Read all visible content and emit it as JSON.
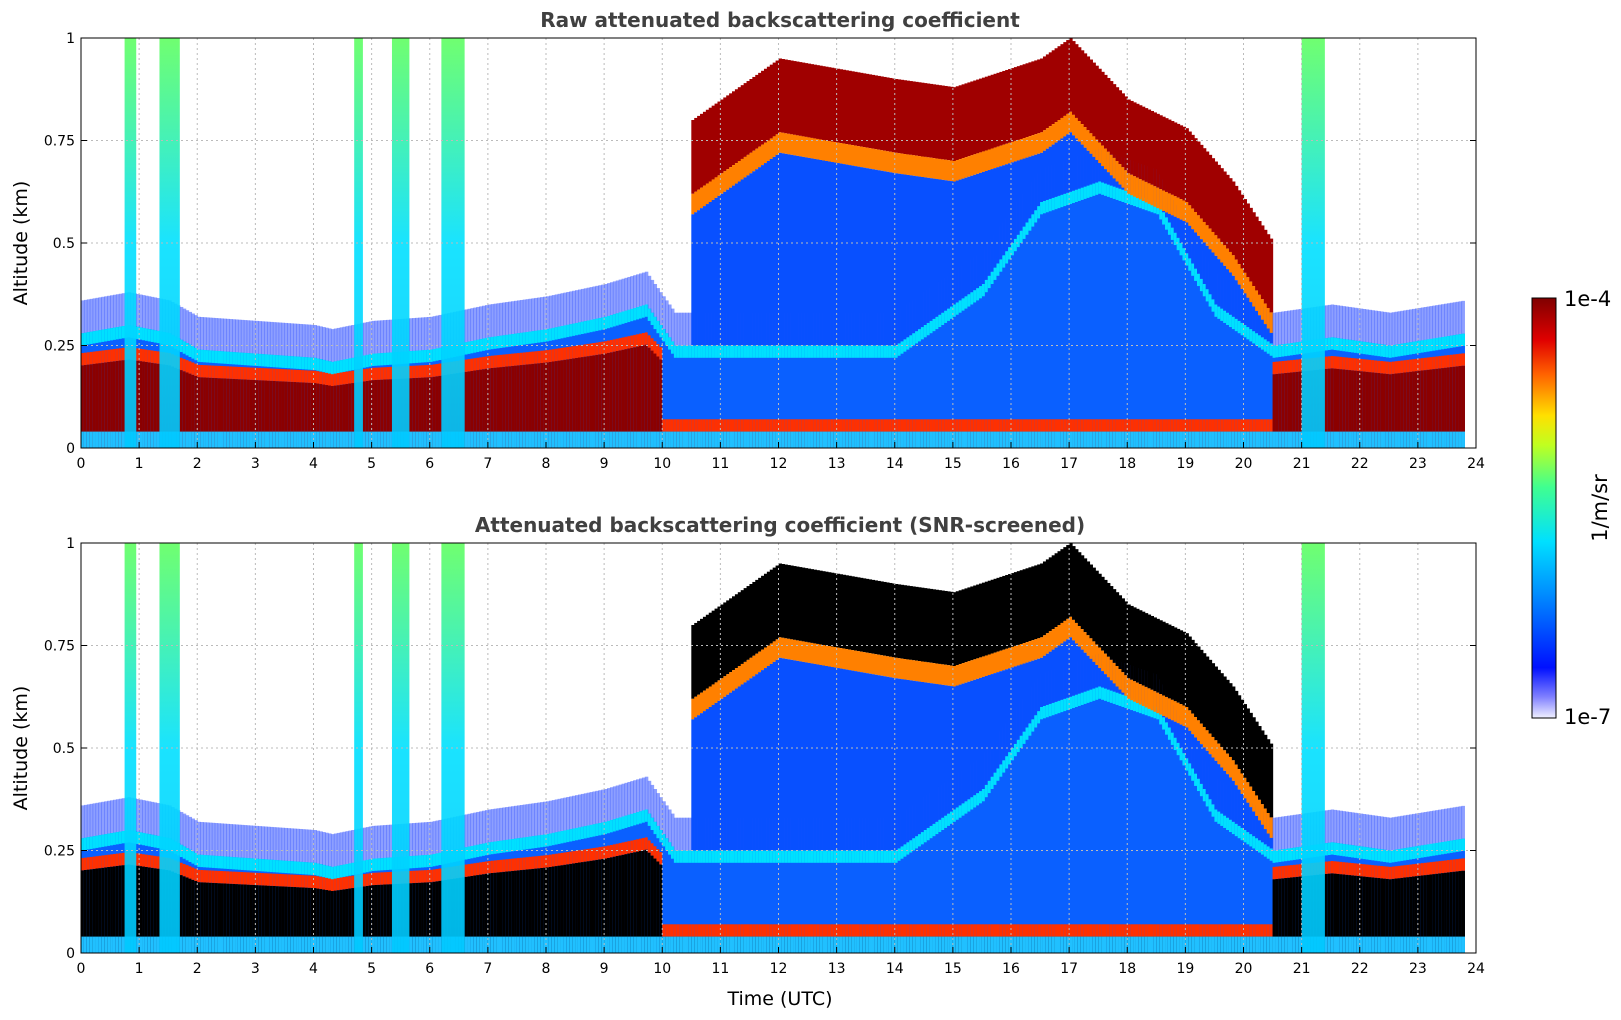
{
  "chart_data": [
    {
      "type": "heatmap",
      "title": "Raw attenuated backscattering coefficient",
      "xlabel": "",
      "ylabel": "Altitude (km)",
      "xlim": [
        0,
        24
      ],
      "ylim": [
        0,
        1
      ],
      "xticks": [
        "0",
        "1",
        "2",
        "3",
        "4",
        "5",
        "6",
        "7",
        "8",
        "9",
        "10",
        "11",
        "12",
        "13",
        "14",
        "15",
        "16",
        "17",
        "18",
        "19",
        "20",
        "21",
        "22",
        "23",
        "24"
      ],
      "yticks": [
        "0",
        "0.25",
        "0.5",
        "0.75",
        "1"
      ],
      "grid": true,
      "layer_top_km": [
        [
          0,
          0.28
        ],
        [
          0.8,
          0.3
        ],
        [
          1.5,
          0.28
        ],
        [
          2,
          0.24
        ],
        [
          3,
          0.23
        ],
        [
          4,
          0.22
        ],
        [
          4.3,
          0.21
        ],
        [
          5,
          0.23
        ],
        [
          6,
          0.24
        ],
        [
          7,
          0.27
        ],
        [
          8,
          0.29
        ],
        [
          9,
          0.32
        ],
        [
          9.7,
          0.35
        ],
        [
          10.2,
          0.25
        ],
        [
          12,
          0.25
        ],
        [
          14,
          0.25
        ],
        [
          15.5,
          0.4
        ],
        [
          16.5,
          0.6
        ],
        [
          17.5,
          0.65
        ],
        [
          18.5,
          0.6
        ],
        [
          19.5,
          0.35
        ],
        [
          20.5,
          0.25
        ],
        [
          21.5,
          0.27
        ],
        [
          22.5,
          0.25
        ],
        [
          23.8,
          0.28
        ]
      ],
      "cloud_top_km": [
        [
          10.5,
          0.8
        ],
        [
          12,
          0.95
        ],
        [
          14,
          0.9
        ],
        [
          15,
          0.88
        ],
        [
          16.5,
          0.95
        ],
        [
          17,
          1.0
        ],
        [
          18,
          0.85
        ],
        [
          19,
          0.78
        ],
        [
          19.8,
          0.65
        ],
        [
          20.5,
          0.5
        ]
      ]
    },
    {
      "type": "heatmap",
      "title": "Attenuated backscattering coefficient (SNR-screened)",
      "xlabel": "Time (UTC)",
      "ylabel": "Altitude (km)",
      "xlim": [
        0,
        24
      ],
      "ylim": [
        0,
        1
      ],
      "xticks": [
        "0",
        "1",
        "2",
        "3",
        "4",
        "5",
        "6",
        "7",
        "8",
        "9",
        "10",
        "11",
        "12",
        "13",
        "14",
        "15",
        "16",
        "17",
        "18",
        "19",
        "20",
        "21",
        "22",
        "23",
        "24"
      ],
      "yticks": [
        "0",
        "0.25",
        "0.5",
        "0.75",
        "1"
      ],
      "grid": true,
      "layer_top_km": [
        [
          0,
          0.28
        ],
        [
          0.8,
          0.3
        ],
        [
          1.5,
          0.28
        ],
        [
          2,
          0.24
        ],
        [
          3,
          0.23
        ],
        [
          4,
          0.22
        ],
        [
          4.3,
          0.21
        ],
        [
          5,
          0.23
        ],
        [
          6,
          0.24
        ],
        [
          7,
          0.27
        ],
        [
          8,
          0.29
        ],
        [
          9,
          0.32
        ],
        [
          9.7,
          0.35
        ],
        [
          10.2,
          0.25
        ],
        [
          12,
          0.25
        ],
        [
          14,
          0.25
        ],
        [
          15.5,
          0.4
        ],
        [
          16.5,
          0.6
        ],
        [
          17.5,
          0.65
        ],
        [
          18.5,
          0.6
        ],
        [
          19.5,
          0.35
        ],
        [
          20.5,
          0.25
        ],
        [
          21.5,
          0.27
        ],
        [
          22.5,
          0.25
        ],
        [
          23.8,
          0.28
        ]
      ],
      "cloud_top_km": [
        [
          10.5,
          0.8
        ],
        [
          12,
          0.95
        ],
        [
          14,
          0.9
        ],
        [
          15,
          0.88
        ],
        [
          16.5,
          0.95
        ],
        [
          17,
          1.0
        ],
        [
          18,
          0.85
        ],
        [
          19,
          0.78
        ],
        [
          19.8,
          0.65
        ],
        [
          20.5,
          0.5
        ]
      ]
    }
  ],
  "colorbar": {
    "label": "1/m/sr",
    "max_label": "1e-4",
    "min_label": "1e-7",
    "scale": "log",
    "colormap": "jet"
  },
  "colors": {
    "title": "#404040",
    "grid": "#bbbbbb",
    "saturated": "#000000"
  }
}
